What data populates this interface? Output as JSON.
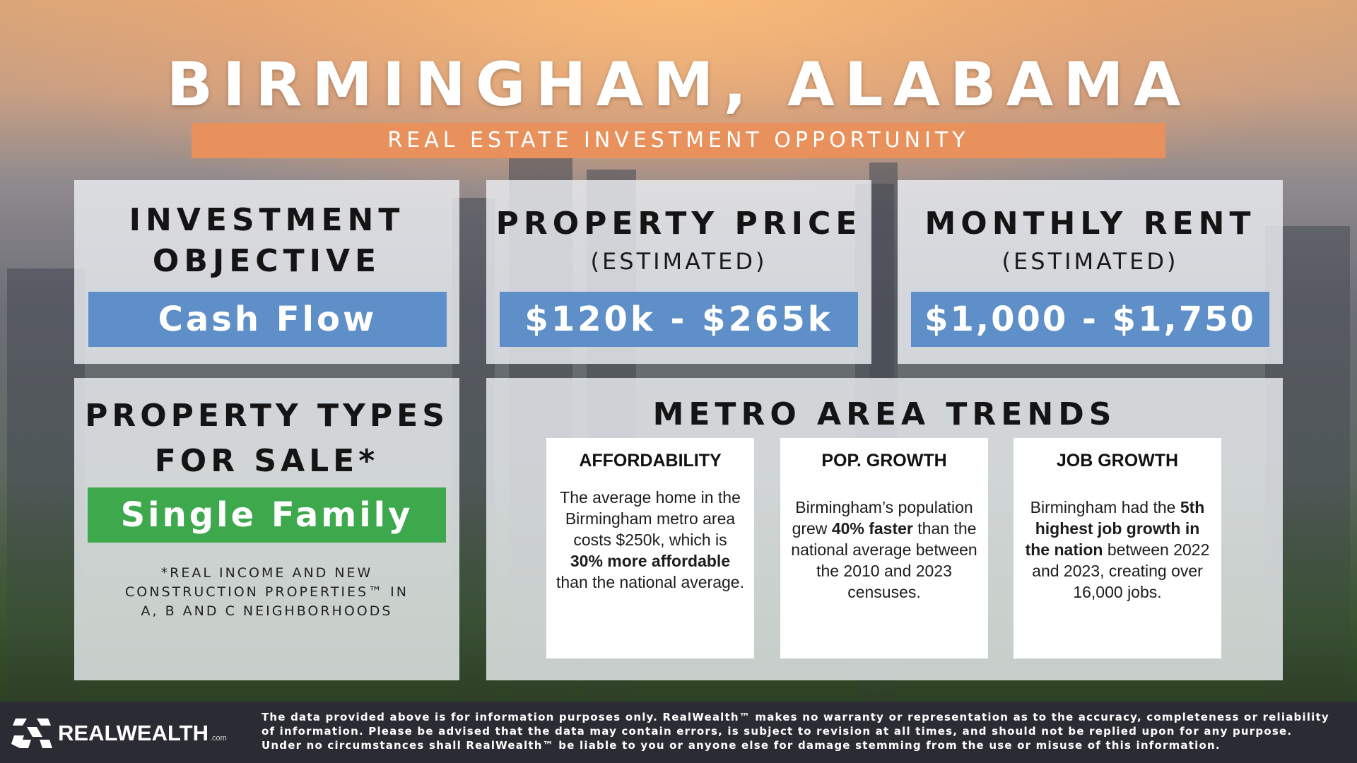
{
  "header": {
    "title": "BIRMINGHAM, ALABAMA",
    "subtitle": "REAL ESTATE INVESTMENT OPPORTUNITY"
  },
  "investment_objective": {
    "heading_line1": "INVESTMENT",
    "heading_line2": "OBJECTIVE",
    "value": "Cash Flow"
  },
  "property_price": {
    "heading": "PROPERTY PRICE",
    "subheading": "(ESTIMATED)",
    "value": "$120k - $265k"
  },
  "monthly_rent": {
    "heading": "MONTHLY RENT",
    "subheading": "(ESTIMATED)",
    "value": "$1,000 - $1,750"
  },
  "property_types": {
    "heading_line1": "PROPERTY TYPES",
    "heading_line2": "FOR SALE*",
    "value": "Single Family",
    "note_line1": "*REAL INCOME AND NEW",
    "note_line2": "CONSTRUCTION PROPERTIES™ IN",
    "note_line3": "A, B AND C NEIGHBORHOODS"
  },
  "metro_trends": {
    "heading": "METRO AREA TRENDS",
    "cards": [
      {
        "title": "AFFORDABILITY",
        "text_before": "The average home in the Birmingham metro area costs $250k, which is ",
        "text_bold": "30% more affordable",
        "text_after": " than the national average."
      },
      {
        "title": "POP. GROWTH",
        "text_before": "Birmingham’s population grew ",
        "text_bold": "40% faster",
        "text_after": " than the national average between the 2010 and 2023 censuses."
      },
      {
        "title": "JOB GROWTH",
        "text_before": "Birmingham had the ",
        "text_bold": "5th highest job growth in the nation",
        "text_after": " between 2022 and 2023, creating over 16,000 jobs."
      }
    ]
  },
  "footer": {
    "logo_text": "REALWEALTH",
    "logo_suffix": ".com",
    "disclaimer": "The data provided above is for information purposes only. RealWealth™ makes no warranty or representation as to the accuracy, completeness or reliability of information. Please be advised that the data may contain errors, is subject to revision at all times, and should not be replied upon for any purpose. Under no circumstances shall RealWealth™ be liable to you or anyone else for damage stemming from the use or misuse of this information."
  },
  "colors": {
    "accent_orange": "#e8915c",
    "pill_blue": "#5e8fc8",
    "pill_green": "#3ea84d",
    "footer_bg": "#2b2c33"
  }
}
